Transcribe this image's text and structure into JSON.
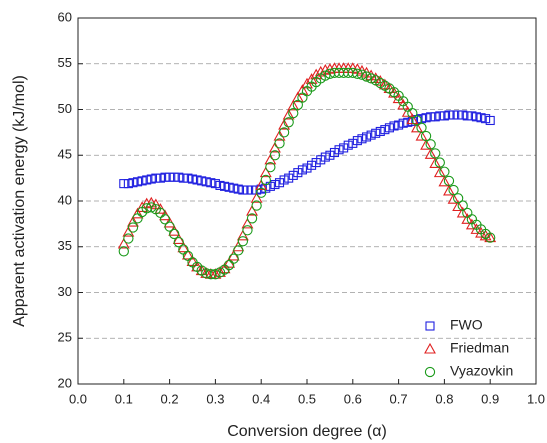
{
  "chart_data": {
    "type": "scatter",
    "x_label": "Conversion degree (α)",
    "y_label": "Apparent activation energy (kJ/mol)",
    "xlim": [
      0,
      1
    ],
    "xticks": [
      {
        "value": 0,
        "label": "0.0"
      },
      0.1,
      0.2,
      0.3,
      0.4,
      0.5,
      0.6,
      0.7,
      0.8,
      0.9,
      {
        "value": 1,
        "label": "1.0"
      }
    ],
    "ylim": [
      20,
      60
    ],
    "yticks": [
      20,
      25,
      30,
      35,
      40,
      45,
      50,
      55,
      60
    ],
    "grid": true,
    "legend": "lower right",
    "x": [
      0.1,
      0.11,
      0.12,
      0.13,
      0.14,
      0.15,
      0.16,
      0.17,
      0.18,
      0.19,
      0.2,
      0.21,
      0.22,
      0.23,
      0.24,
      0.25,
      0.26,
      0.27,
      0.28,
      0.29,
      0.3,
      0.31,
      0.32,
      0.33,
      0.34,
      0.35,
      0.36,
      0.37,
      0.38,
      0.39,
      0.4,
      0.41,
      0.42,
      0.43,
      0.44,
      0.45,
      0.46,
      0.47,
      0.48,
      0.49,
      0.5,
      0.51,
      0.52,
      0.53,
      0.54,
      0.55,
      0.56,
      0.57,
      0.58,
      0.59,
      0.6,
      0.61,
      0.62,
      0.63,
      0.64,
      0.65,
      0.66,
      0.67,
      0.68,
      0.69,
      0.7,
      0.71,
      0.72,
      0.73,
      0.74,
      0.75,
      0.76,
      0.77,
      0.78,
      0.79,
      0.8,
      0.81,
      0.82,
      0.83,
      0.84,
      0.85,
      0.86,
      0.87,
      0.88,
      0.89,
      0.9
    ],
    "series": [
      {
        "name": "FWO",
        "color": "#2020e0",
        "marker": "square",
        "values": [
          41.9,
          41.9,
          42.0,
          42.1,
          42.2,
          42.3,
          42.4,
          42.5,
          42.5,
          42.6,
          42.6,
          42.6,
          42.6,
          42.5,
          42.5,
          42.4,
          42.3,
          42.2,
          42.1,
          42.0,
          41.9,
          41.7,
          41.6,
          41.5,
          41.4,
          41.3,
          41.2,
          41.2,
          41.2,
          41.2,
          41.3,
          41.4,
          41.6,
          41.8,
          42.0,
          42.3,
          42.5,
          42.8,
          43.1,
          43.4,
          43.6,
          43.9,
          44.2,
          44.5,
          44.8,
          45.0,
          45.3,
          45.6,
          45.8,
          46.1,
          46.3,
          46.6,
          46.8,
          47.0,
          47.2,
          47.4,
          47.6,
          47.8,
          48.0,
          48.2,
          48.3,
          48.5,
          48.6,
          48.7,
          48.9,
          49.0,
          49.1,
          49.2,
          49.2,
          49.3,
          49.3,
          49.4,
          49.4,
          49.4,
          49.4,
          49.3,
          49.3,
          49.2,
          49.1,
          49.0,
          48.8
        ]
      },
      {
        "name": "Friedman",
        "color": "#e02020",
        "marker": "triangle",
        "values": [
          35.3,
          36.6,
          37.7,
          38.6,
          39.3,
          39.7,
          39.8,
          39.6,
          39.1,
          38.4,
          37.6,
          36.7,
          35.8,
          34.9,
          34.1,
          33.4,
          32.8,
          32.4,
          32.1,
          32.0,
          32.0,
          32.2,
          32.6,
          33.2,
          34.0,
          35.0,
          36.2,
          37.5,
          38.9,
          40.3,
          41.7,
          43.1,
          44.5,
          45.8,
          47.1,
          48.3,
          49.4,
          50.4,
          51.3,
          52.1,
          52.8,
          53.3,
          53.8,
          54.1,
          54.3,
          54.4,
          54.5,
          54.5,
          54.5,
          54.5,
          54.5,
          54.4,
          54.2,
          54.0,
          53.7,
          53.4,
          53.1,
          52.7,
          52.3,
          51.8,
          51.2,
          50.5,
          49.7,
          48.9,
          48.0,
          47.1,
          46.1,
          45.1,
          44.1,
          43.1,
          42.1,
          41.1,
          40.2,
          39.4,
          38.7,
          38.0,
          37.4,
          36.9,
          36.5,
          36.2,
          36.0
        ]
      },
      {
        "name": "Vyazovkin",
        "color": "#1a9a1a",
        "marker": "circle",
        "values": [
          34.5,
          35.9,
          37.1,
          38.1,
          38.8,
          39.2,
          39.3,
          39.1,
          38.7,
          38.0,
          37.2,
          36.4,
          35.5,
          34.7,
          34.0,
          33.3,
          32.8,
          32.4,
          32.1,
          32.0,
          32.0,
          32.2,
          32.5,
          33.0,
          33.7,
          34.6,
          35.6,
          36.8,
          38.1,
          39.5,
          40.9,
          42.3,
          43.7,
          45.0,
          46.3,
          47.5,
          48.6,
          49.6,
          50.5,
          51.3,
          52.0,
          52.5,
          53.0,
          53.4,
          53.7,
          53.9,
          54.0,
          54.0,
          54.0,
          54.0,
          54.0,
          53.9,
          53.8,
          53.6,
          53.4,
          53.2,
          52.9,
          52.6,
          52.3,
          51.9,
          51.5,
          50.9,
          50.3,
          49.6,
          48.8,
          48.0,
          47.1,
          46.2,
          45.2,
          44.2,
          43.2,
          42.2,
          41.2,
          40.3,
          39.5,
          38.7,
          38.0,
          37.4,
          36.9,
          36.4,
          36.0
        ]
      }
    ]
  }
}
